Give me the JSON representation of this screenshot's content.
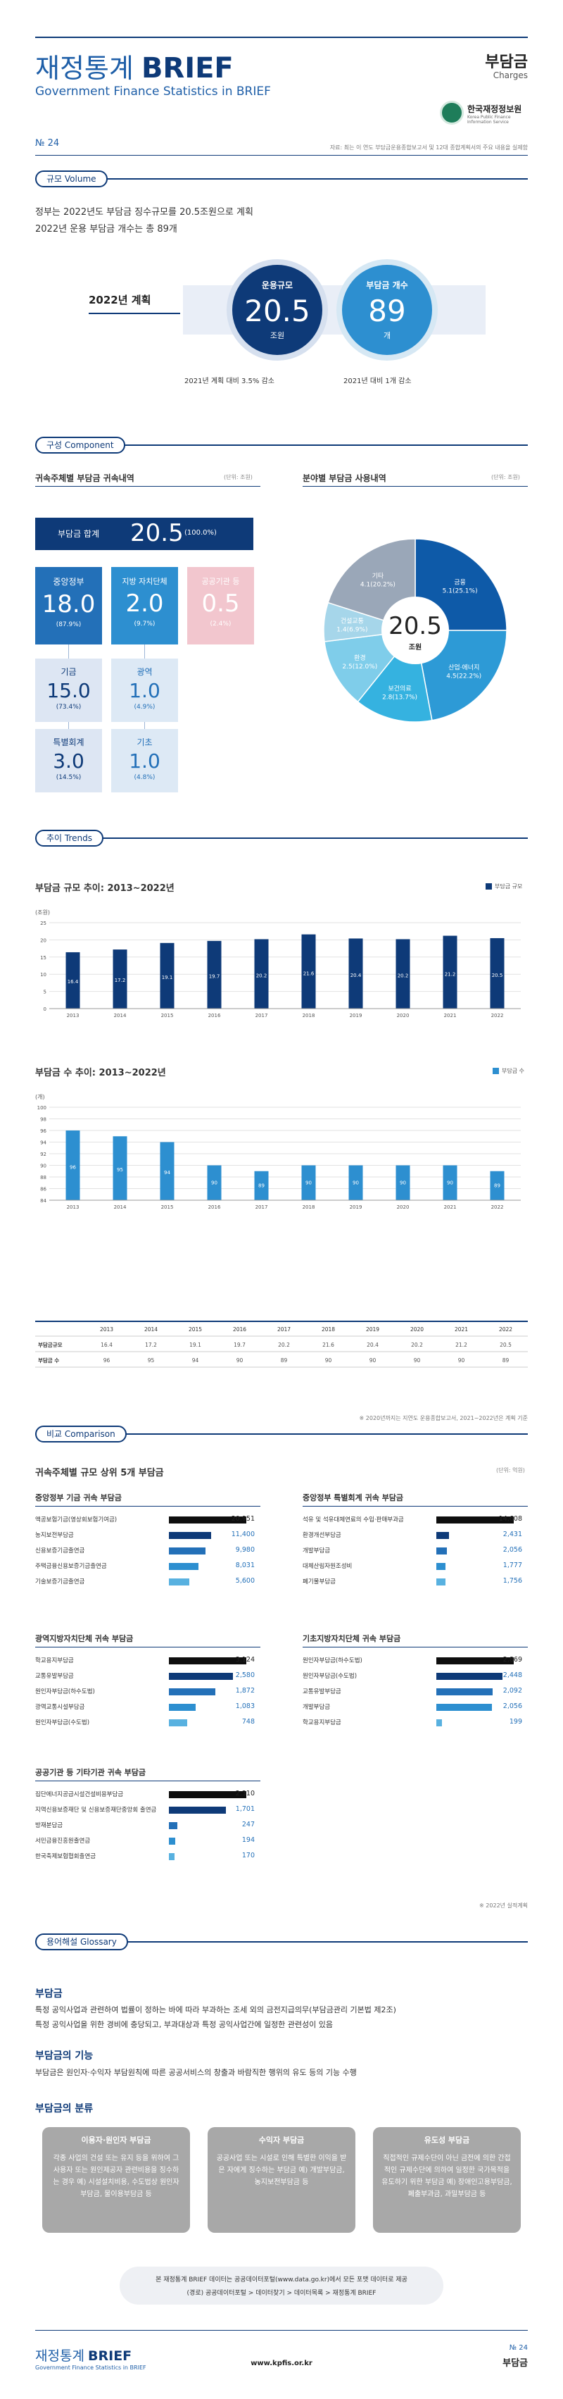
{
  "header": {
    "title_kr": "재정통계",
    "title_en": "BRIEF",
    "subtitle": "Government Finance Statistics in BRIEF",
    "topic": "부담금",
    "topic_en": "Charges",
    "org_name": "한국재정정보원",
    "org_name_en": "Korea Public Finance Information Service",
    "issue": "№ 24",
    "source_note": "자료: 최는 이 연도 부담금운용종합보고서 및 12대 종합계획서의 주요 내용을 실제함"
  },
  "volume": {
    "tag": "규모 Volume",
    "summary1": "정부는 2022년도 부담금 징수규모를 20.5조원으로 계획",
    "summary2": "2022년 운용 부담금 개수는 총 89개",
    "plan_label": "2022년 계획",
    "scale_title": "운용규모",
    "scale_value": "20.5",
    "scale_unit": "조원",
    "count_title": "부담금 개수",
    "count_value": "89",
    "count_unit": "개",
    "scale_note": "2021년 계획 대비 3.5% 감소",
    "count_note": "2021년 대비 1개 감소"
  },
  "component": {
    "tag": "구성 Component",
    "left_title": "귀속주체별 부담금 귀속내역",
    "left_unit": "(단위: 조원)",
    "right_title": "분야별 부담금 사용내역",
    "right_unit": "(단위: 조원)",
    "total_label": "부담금 합계",
    "total_value": "20.5",
    "total_pct": "(100.0%)",
    "central_label": "중앙정부",
    "central_value": "18.0",
    "central_pct": "(87.9%)",
    "local_label": "지방 자치단체",
    "local_value": "2.0",
    "local_pct": "(9.7%)",
    "public_label": "공공기관 등",
    "public_value": "0.5",
    "public_pct": "(2.4%)",
    "fund_label": "기금",
    "fund_value": "15.0",
    "fund_pct": "(73.4%)",
    "special_label": "특별회계",
    "special_value": "3.0",
    "special_pct": "(14.5%)",
    "metro_label": "광역",
    "metro_value": "1.0",
    "metro_pct": "(4.9%)",
    "basic_label": "기초",
    "basic_value": "1.0",
    "basic_pct": "(4.8%)",
    "donut_center_value": "20.5",
    "donut_center_unit": "조원"
  },
  "trends": {
    "tag": "추이 Trends",
    "chart1_title": "부담금 규모 추이: 2013~2022년",
    "chart1_legend": "부담금 규모",
    "chart1_unit": "(조원)",
    "chart2_title": "부담금 수 추이: 2013~2022년",
    "chart2_legend": "부담금 수",
    "chart2_unit": "(개)",
    "table_row1": "부담금규모",
    "table_row2": "부담금 수",
    "table_note": "※ 2020년까지는 지연도 운용종합보고서, 2021~2022년은 계획 기준"
  },
  "comparison": {
    "tag": "비교 Comparison",
    "title": "귀속주체별 규모 상위 5개 부담금",
    "unit": "(단위: 억원)",
    "g1_title": "중앙정부 기금 귀속 부담금",
    "g1": [
      {
        "name": "액공보험기금(영상회보험기여금)",
        "value": "20,951"
      },
      {
        "name": "농지보전부담금",
        "value": "11,400"
      },
      {
        "name": "신용보증기금출연금",
        "value": "9,980"
      },
      {
        "name": "주택금융신용보증기금출연금",
        "value": "8,031"
      },
      {
        "name": "기술보증기금출연금",
        "value": "5,600"
      }
    ],
    "g2_title": "중앙정부 특별회계 귀속 부담금",
    "g2": [
      {
        "name": "석유 및 석유대체연료의 수입·판매부과금",
        "value": "14,608"
      },
      {
        "name": "환경개선부담금",
        "value": "2,431"
      },
      {
        "name": "개발부담금",
        "value": "2,056"
      },
      {
        "name": "대체산림자원조성비",
        "value": "1,777"
      },
      {
        "name": "폐기물부담금",
        "value": "1,756"
      }
    ],
    "g3_title": "광역지방자치단체 귀속 부담금",
    "g3": [
      {
        "name": "학교용지부담금",
        "value": "3,124"
      },
      {
        "name": "교통유발부담금",
        "value": "2,580"
      },
      {
        "name": "원인자부담금(하수도법)",
        "value": "1,872"
      },
      {
        "name": "광역교통시설부담금",
        "value": "1,083"
      },
      {
        "name": "원인자부담금(수도법)",
        "value": "748"
      }
    ],
    "g4_title": "기초지방자치단체 귀속 부담금",
    "g4": [
      {
        "name": "원인자부담금(하수도법)",
        "value": "2,869"
      },
      {
        "name": "원인자부담금(수도법)",
        "value": "2,448"
      },
      {
        "name": "교통유발부담금",
        "value": "2,092"
      },
      {
        "name": "개발부담금",
        "value": "2,056"
      },
      {
        "name": "학교용지부담금",
        "value": "199"
      }
    ],
    "g5_title": "공공기관 등 기타기관 귀속 부담금",
    "g5": [
      {
        "name": "집단에너지공급시설건설비용부담금",
        "value": "2,310"
      },
      {
        "name": "지역신용보증재단 및 신용보증재단중앙회 출연금",
        "value": "1,701"
      },
      {
        "name": "방재분담금",
        "value": "247"
      },
      {
        "name": "서민금융진흥원출연금",
        "value": "194"
      },
      {
        "name": "한국축제보험협회출연금",
        "value": "170"
      }
    ],
    "note": "※ 2022년 실적계획"
  },
  "glossary": {
    "tag": "용어해설 Glossary",
    "h1": "부담금",
    "p1a": "특정 공익사업과 관련하여 법률이 정하는 바에 따라 부과하는 조세 외의 금전지급의무(부담금관리 기본법 제2조)",
    "p1b": "특정 공익사업을 위한 경비에 충당되고, 부과대상과 특정 공익사업간에 일정한 관련성이 있음",
    "h2": "부담금의 기능",
    "p2": "부담금은 원인자·수익자 부담원칙에 따른 공공서비스의 창출과 바람직한 행위의 유도 등의 기능 수행",
    "h3": "부담금의 분류",
    "c1_title": "이용자·원인자 부담금",
    "c1_desc": "각종 사업의 건설 또는 유지 등을 위하여 그 사용자 또는 원인제공자 관련비용을 징수하는 경우 예) 시설설치비용, 수도법상 원인자부담금, 물이용부담금 등",
    "c2_title": "수익자 부담금",
    "c2_desc": "공공사업 또는 시설로 인해 특별한 이익을 받은 자에게 징수하는 부담금 예) 개발부담금, 농지보전부담금 등",
    "c3_title": "유도성 부담금",
    "c3_desc": "직접적인 규제수단이 아닌 금전에 의한 간접적인 규제수단에 의하여 일정한 국가목적을 유도하기 위한 부담금 예) 장애인고용부담금, 폐출부과금, 과밀부담금 등",
    "footer_box1": "본 재정통계 BRIEF 데이터는 공공데이터포털(www.data.go.kr)에서 모든 포맷 데이터로 제공",
    "footer_box2": "(경로) 공공데이터포털 > 데이터찾기 > 데이터목록 > 재정통계 BRIEF"
  },
  "footer": {
    "brand_kr": "재정통계",
    "brand_en": "BRIEF",
    "brand_sub": "Government Finance Statistics in BRIEF",
    "url": "www.kpfis.or.kr",
    "issue": "№ 24",
    "topic": "부담금"
  },
  "colors": {
    "navy": "#0e3a78",
    "blue": "#2d8fd0",
    "light_blue": "#c8dff2",
    "pink": "#f2c6ce"
  },
  "chart_data": [
    {
      "type": "bar",
      "title": "부담금 규모 추이: 2013~2022년",
      "ylabel": "(조원)",
      "categories": [
        "2013",
        "2014",
        "2015",
        "2016",
        "2017",
        "2018",
        "2019",
        "2020",
        "2021",
        "2022"
      ],
      "series": [
        {
          "name": "부담금 규모",
          "values": [
            16.4,
            17.2,
            19.1,
            19.7,
            20.2,
            21.6,
            20.4,
            20.2,
            21.2,
            20.5
          ]
        }
      ],
      "ylim": [
        0,
        25
      ],
      "yticks": [
        0,
        5,
        10,
        15,
        20,
        25
      ]
    },
    {
      "type": "bar",
      "title": "부담금 수 추이: 2013~2022년",
      "ylabel": "(개)",
      "categories": [
        "2013",
        "2014",
        "2015",
        "2016",
        "2017",
        "2018",
        "2019",
        "2020",
        "2021",
        "2022"
      ],
      "series": [
        {
          "name": "부담금 수",
          "values": [
            96,
            95,
            94,
            90,
            89,
            90,
            90,
            90,
            90,
            89
          ]
        }
      ],
      "ylim": [
        84,
        100
      ],
      "yticks": [
        84,
        86,
        88,
        90,
        92,
        94,
        96,
        98,
        100
      ]
    },
    {
      "type": "pie",
      "title": "분야별 부담금 사용내역",
      "categories": [
        "금융",
        "산업·에너지",
        "보건의료",
        "환경",
        "건설교통",
        "기타"
      ],
      "values": [
        5.1,
        4.5,
        2.8,
        2.5,
        1.4,
        4.1
      ],
      "labels": [
        "5.1(25.1%)",
        "4.5(22.2%)",
        "2.8(13.7%)",
        "2.5(12.0%)",
        "1.4(6.9%)",
        "4.1(20.2%)"
      ]
    }
  ]
}
